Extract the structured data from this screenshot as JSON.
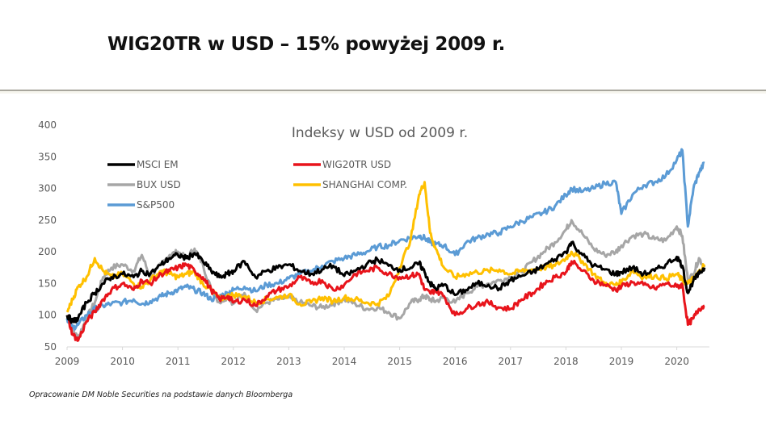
{
  "slide": {
    "title": "WIG20TR w USD – 15% powyżej 2009 r.",
    "footnote": "Opracowanie DM Noble Securities  na podstawie danych Bloomberga"
  },
  "chart_data": {
    "type": "line",
    "title": "Indeksy w USD od 2009 r.",
    "xlabel": "",
    "ylabel": "",
    "xlim": [
      2009,
      2020.5
    ],
    "ylim": [
      50,
      400
    ],
    "yticks": [
      50,
      100,
      150,
      200,
      250,
      300,
      350,
      400
    ],
    "xticks": [
      "2009",
      "2010",
      "2011",
      "2012",
      "2013",
      "2014",
      "2015",
      "2016",
      "2017",
      "2018",
      "2019",
      "2020"
    ],
    "grid": false,
    "legend_position": "top-left",
    "x": [
      2009.0,
      2009.1,
      2009.2,
      2009.35,
      2009.5,
      2009.65,
      2009.8,
      2010.0,
      2010.2,
      2010.35,
      2010.5,
      2010.7,
      2010.85,
      2011.0,
      2011.15,
      2011.3,
      2011.45,
      2011.6,
      2011.75,
      2011.9,
      2012.0,
      2012.2,
      2012.4,
      2012.6,
      2012.8,
      2013.0,
      2013.2,
      2013.4,
      2013.6,
      2013.8,
      2014.0,
      2014.2,
      2014.4,
      2014.6,
      2014.8,
      2015.0,
      2015.2,
      2015.35,
      2015.45,
      2015.55,
      2015.65,
      2015.8,
      2016.0,
      2016.2,
      2016.4,
      2016.6,
      2016.8,
      2017.0,
      2017.2,
      2017.4,
      2017.6,
      2017.8,
      2018.0,
      2018.1,
      2018.3,
      2018.5,
      2018.7,
      2018.9,
      2019.0,
      2019.2,
      2019.4,
      2019.6,
      2019.8,
      2020.0,
      2020.1,
      2020.2,
      2020.3,
      2020.4,
      2020.5
    ],
    "series": [
      {
        "name": "MSCI EM",
        "color": "#000000",
        "values": [
          100,
          90,
          95,
          120,
          135,
          150,
          160,
          165,
          160,
          170,
          165,
          180,
          190,
          195,
          190,
          198,
          185,
          170,
          160,
          165,
          170,
          185,
          160,
          170,
          175,
          180,
          170,
          165,
          172,
          178,
          162,
          170,
          180,
          188,
          178,
          172,
          175,
          182,
          168,
          150,
          142,
          148,
          132,
          140,
          150,
          148,
          142,
          155,
          162,
          168,
          178,
          188,
          200,
          215,
          195,
          178,
          172,
          165,
          168,
          175,
          165,
          170,
          180,
          192,
          178,
          135,
          155,
          165,
          175
        ]
      },
      {
        "name": "WIG20TR USD",
        "color": "#E8141B",
        "values": [
          100,
          70,
          60,
          90,
          105,
          125,
          140,
          150,
          140,
          155,
          150,
          165,
          170,
          175,
          180,
          170,
          160,
          140,
          125,
          130,
          120,
          125,
          115,
          130,
          140,
          145,
          160,
          150,
          155,
          140,
          148,
          165,
          170,
          175,
          165,
          160,
          162,
          165,
          140,
          135,
          140,
          130,
          100,
          110,
          118,
          120,
          112,
          110,
          125,
          135,
          150,
          160,
          168,
          185,
          170,
          155,
          148,
          140,
          145,
          152,
          148,
          142,
          150,
          145,
          148,
          85,
          95,
          110,
          115
        ]
      },
      {
        "name": "BUX USD",
        "color": "#A6A6A6",
        "values": [
          100,
          75,
          65,
          95,
          120,
          160,
          175,
          180,
          170,
          195,
          160,
          180,
          195,
          200,
          190,
          205,
          180,
          140,
          120,
          130,
          118,
          135,
          108,
          120,
          125,
          128,
          120,
          115,
          112,
          118,
          125,
          118,
          110,
          112,
          105,
          95,
          120,
          125,
          130,
          125,
          122,
          128,
          120,
          135,
          145,
          150,
          155,
          160,
          168,
          185,
          200,
          215,
          235,
          250,
          228,
          205,
          195,
          200,
          210,
          225,
          228,
          220,
          218,
          240,
          225,
          155,
          165,
          190,
          175
        ]
      },
      {
        "name": "SHANGHAI COMP.",
        "color": "#FFC000",
        "values": [
          105,
          125,
          145,
          160,
          190,
          170,
          160,
          165,
          150,
          145,
          155,
          170,
          165,
          160,
          165,
          168,
          150,
          140,
          125,
          130,
          132,
          130,
          120,
          125,
          128,
          132,
          118,
          120,
          128,
          122,
          128,
          125,
          120,
          118,
          130,
          175,
          220,
          290,
          310,
          230,
          205,
          175,
          160,
          165,
          168,
          170,
          172,
          165,
          170,
          172,
          175,
          178,
          190,
          200,
          185,
          165,
          150,
          148,
          152,
          170,
          160,
          162,
          158,
          165,
          155,
          150,
          158,
          168,
          180
        ]
      },
      {
        "name": "S&P500",
        "color": "#5B9BD5",
        "values": [
          95,
          80,
          85,
          100,
          110,
          115,
          118,
          120,
          125,
          118,
          122,
          130,
          135,
          140,
          145,
          140,
          135,
          125,
          130,
          135,
          140,
          145,
          138,
          148,
          150,
          158,
          165,
          170,
          178,
          185,
          190,
          195,
          200,
          208,
          210,
          218,
          222,
          225,
          222,
          215,
          212,
          210,
          195,
          215,
          222,
          228,
          230,
          240,
          248,
          255,
          262,
          272,
          290,
          300,
          295,
          300,
          308,
          310,
          260,
          290,
          305,
          310,
          320,
          345,
          360,
          240,
          300,
          325,
          340
        ]
      }
    ]
  }
}
